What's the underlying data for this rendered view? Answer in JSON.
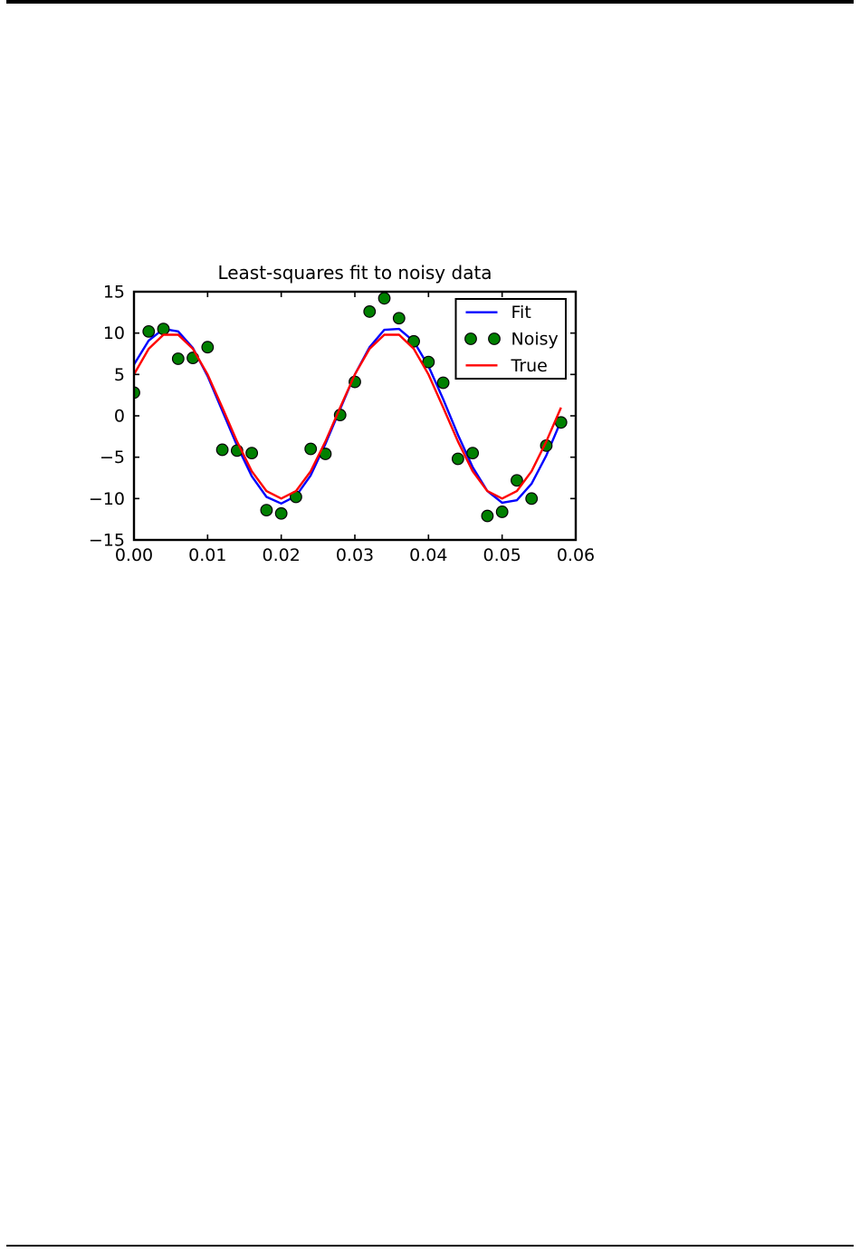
{
  "page": {
    "background": "#ffffff",
    "rule_color": "#000000"
  },
  "chart_data": {
    "type": "line",
    "title": "Least-squares fit to noisy data",
    "xlabel": "",
    "ylabel": "",
    "xlim": [
      0.0,
      0.06
    ],
    "ylim": [
      -15,
      15
    ],
    "xticks": [
      0.0,
      0.01,
      0.02,
      0.03,
      0.04,
      0.05,
      0.06
    ],
    "xtick_labels": [
      "0.00",
      "0.01",
      "0.02",
      "0.03",
      "0.04",
      "0.05",
      "0.06"
    ],
    "yticks": [
      15,
      10,
      5,
      0,
      -5,
      -10,
      -15
    ],
    "ytick_labels": [
      "15",
      "10",
      "5",
      "0",
      "−5",
      "−10",
      "−15"
    ],
    "grid": false,
    "legend_position": "upper right",
    "axis_color": "#000000",
    "x": [
      0.0,
      0.002,
      0.004,
      0.006,
      0.008,
      0.01,
      0.012,
      0.014,
      0.016,
      0.018,
      0.02,
      0.022,
      0.024,
      0.026,
      0.028,
      0.03,
      0.032,
      0.034,
      0.036,
      0.038,
      0.04,
      0.042,
      0.044,
      0.046,
      0.048,
      0.05,
      0.052,
      0.054,
      0.056,
      0.058
    ],
    "series": [
      {
        "name": "Fit",
        "render": "line",
        "color": "#0000ff",
        "values": [
          6.2,
          9.1,
          10.5,
          10.2,
          8.2,
          4.8,
          0.6,
          -3.6,
          -7.3,
          -9.8,
          -10.6,
          -9.7,
          -7.2,
          -3.4,
          0.8,
          5.0,
          8.3,
          10.4,
          10.5,
          9.0,
          6.0,
          2.0,
          -2.3,
          -6.2,
          -9.1,
          -10.5,
          -10.2,
          -8.2,
          -4.8,
          -0.6
        ]
      },
      {
        "name": "Noisy",
        "render": "scatter",
        "color": "#008000",
        "marker_edge": "#000000",
        "values": [
          2.8,
          10.2,
          10.5,
          6.9,
          7.0,
          8.3,
          -4.1,
          -4.2,
          -4.5,
          -11.4,
          -11.8,
          -9.8,
          -4.0,
          -4.6,
          0.1,
          4.1,
          12.6,
          14.2,
          11.8,
          9.0,
          6.5,
          4.0,
          -5.2,
          -4.5,
          -12.1,
          -11.6,
          -7.8,
          -10.0,
          -3.6,
          -0.8
        ]
      },
      {
        "name": "True",
        "render": "line",
        "color": "#ff0000",
        "values": [
          5.0,
          8.1,
          9.8,
          9.8,
          8.1,
          5.0,
          1.0,
          -3.1,
          -6.7,
          -9.1,
          -10.0,
          -9.1,
          -6.7,
          -3.1,
          1.0,
          5.0,
          8.1,
          9.8,
          9.8,
          8.1,
          5.0,
          1.0,
          -3.1,
          -6.7,
          -9.1,
          -10.0,
          -9.1,
          -6.7,
          -3.1,
          1.0
        ]
      }
    ],
    "legend_labels": [
      "Fit",
      "Noisy",
      "True"
    ]
  }
}
